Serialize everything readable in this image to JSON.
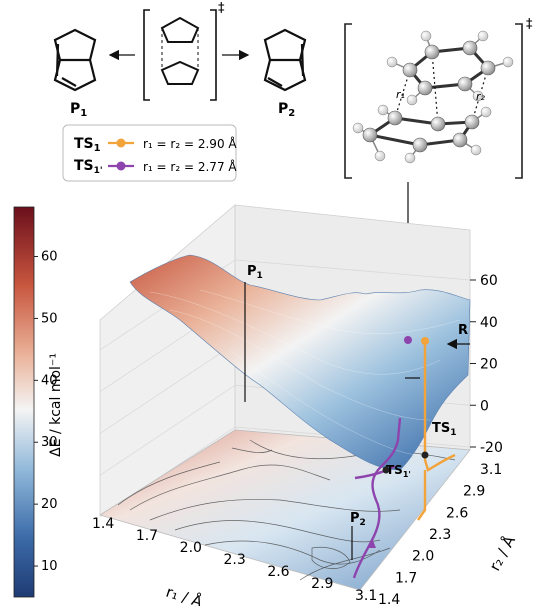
{
  "scheme": {
    "p1_label": "P",
    "p1_sub": "1",
    "p2_label": "P",
    "p2_sub": "2",
    "ts_mark": "‡"
  },
  "legend": {
    "items": [
      {
        "label": "TS",
        "sub": "1",
        "prime": "",
        "text": "r₁ = r₂ = 2.90 Å",
        "color": "#f2a33a"
      },
      {
        "label": "TS",
        "sub": "1'",
        "prime": "'",
        "text": "r₁ = r₂ = 2.77 Å",
        "color": "#8e44ad"
      }
    ]
  },
  "structure": {
    "r1_label": "r₁",
    "r2_label": "r₂",
    "ts_mark": "‡"
  },
  "chart_data": {
    "type": "surface",
    "zlabel": "ΔE / kcal mol⁻¹",
    "xlabel": "r₁ / Å",
    "ylabel": "r₂ / Å",
    "x_ticks": [
      "1.4",
      "1.7",
      "2.0",
      "2.3",
      "2.6",
      "2.9",
      "3.1"
    ],
    "y_ticks": [
      "1.4",
      "1.7",
      "2.0",
      "2.3",
      "2.6",
      "2.9",
      "3.1"
    ],
    "z_ticks": [
      "-20",
      "0",
      "20",
      "40",
      "60"
    ],
    "zlim": [
      -20,
      60
    ],
    "colorbar_ticks": [
      "10",
      "20",
      "30",
      "40",
      "50",
      "60"
    ],
    "colorbar_range": [
      5,
      68
    ],
    "annotations": [
      {
        "label": "P",
        "sub": "1"
      },
      {
        "label": "P",
        "sub": "2"
      },
      {
        "label": "R",
        "sub": ""
      },
      {
        "label": "TS",
        "sub": "1"
      },
      {
        "label": "TS",
        "sub": "1'"
      }
    ],
    "points": [
      {
        "name": "TS1",
        "r1": 2.9,
        "r2": 2.9,
        "color": "#f2a33a"
      },
      {
        "name": "TS1'",
        "r1": 2.77,
        "r2": 2.77,
        "color": "#8e44ad"
      }
    ],
    "grid": true
  }
}
